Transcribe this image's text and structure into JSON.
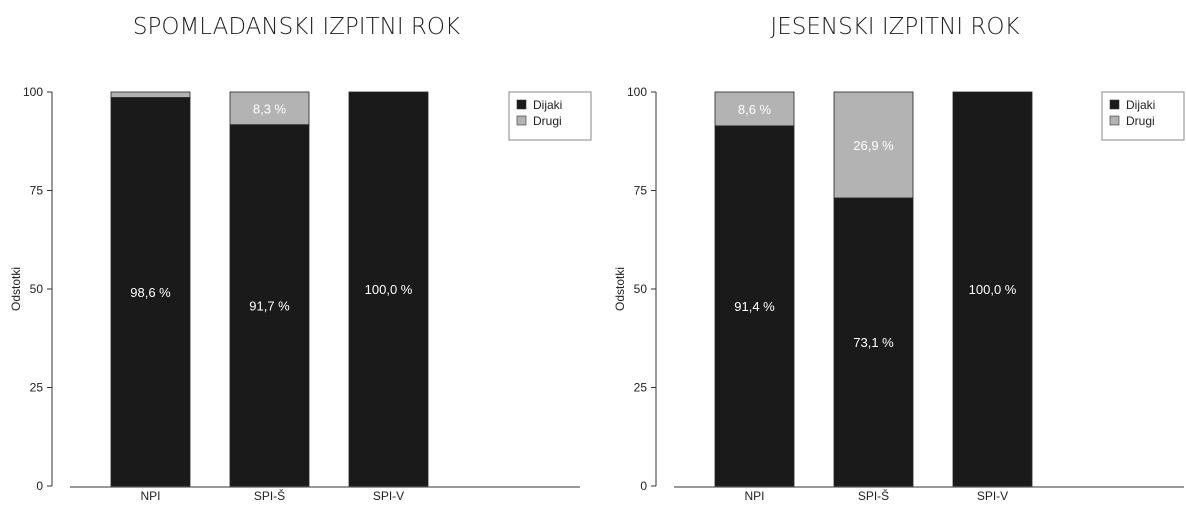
{
  "chart_data": [
    {
      "type": "bar",
      "stacked": true,
      "title": "SPOMLADANSKI IZPITNI ROK",
      "ylabel": "Odstotki",
      "xlabel": "",
      "ylim": [
        0,
        100
      ],
      "yticks": [
        0,
        25,
        50,
        75,
        100
      ],
      "categories": [
        "NPI",
        "SPI-Š",
        "SPI-V"
      ],
      "series": [
        {
          "name": "Dijaki",
          "color": "#1a1a1a",
          "values": [
            98.6,
            91.7,
            100.0
          ],
          "labels": [
            "98,6 %",
            "91,7 %",
            "100,0 %"
          ]
        },
        {
          "name": "Drugi",
          "color": "#b3b3b3",
          "values": [
            1.4,
            8.3,
            0.0
          ],
          "labels": [
            "",
            "8,3 %",
            ""
          ]
        }
      ],
      "legend": "top-right",
      "grid": false
    },
    {
      "type": "bar",
      "stacked": true,
      "title": "JESENSKI IZPITNI ROK",
      "ylabel": "Odstotki",
      "xlabel": "",
      "ylim": [
        0,
        100
      ],
      "yticks": [
        0,
        25,
        50,
        75,
        100
      ],
      "categories": [
        "NPI",
        "SPI-Š",
        "SPI-V"
      ],
      "series": [
        {
          "name": "Dijaki",
          "color": "#1a1a1a",
          "values": [
            91.4,
            73.1,
            100.0
          ],
          "labels": [
            "91,4 %",
            "73,1 %",
            "100,0 %"
          ]
        },
        {
          "name": "Drugi",
          "color": "#b3b3b3",
          "values": [
            8.6,
            26.9,
            0.0
          ],
          "labels": [
            "8,6 %",
            "26,9 %",
            ""
          ]
        }
      ],
      "legend": "top-right",
      "grid": false
    }
  ]
}
